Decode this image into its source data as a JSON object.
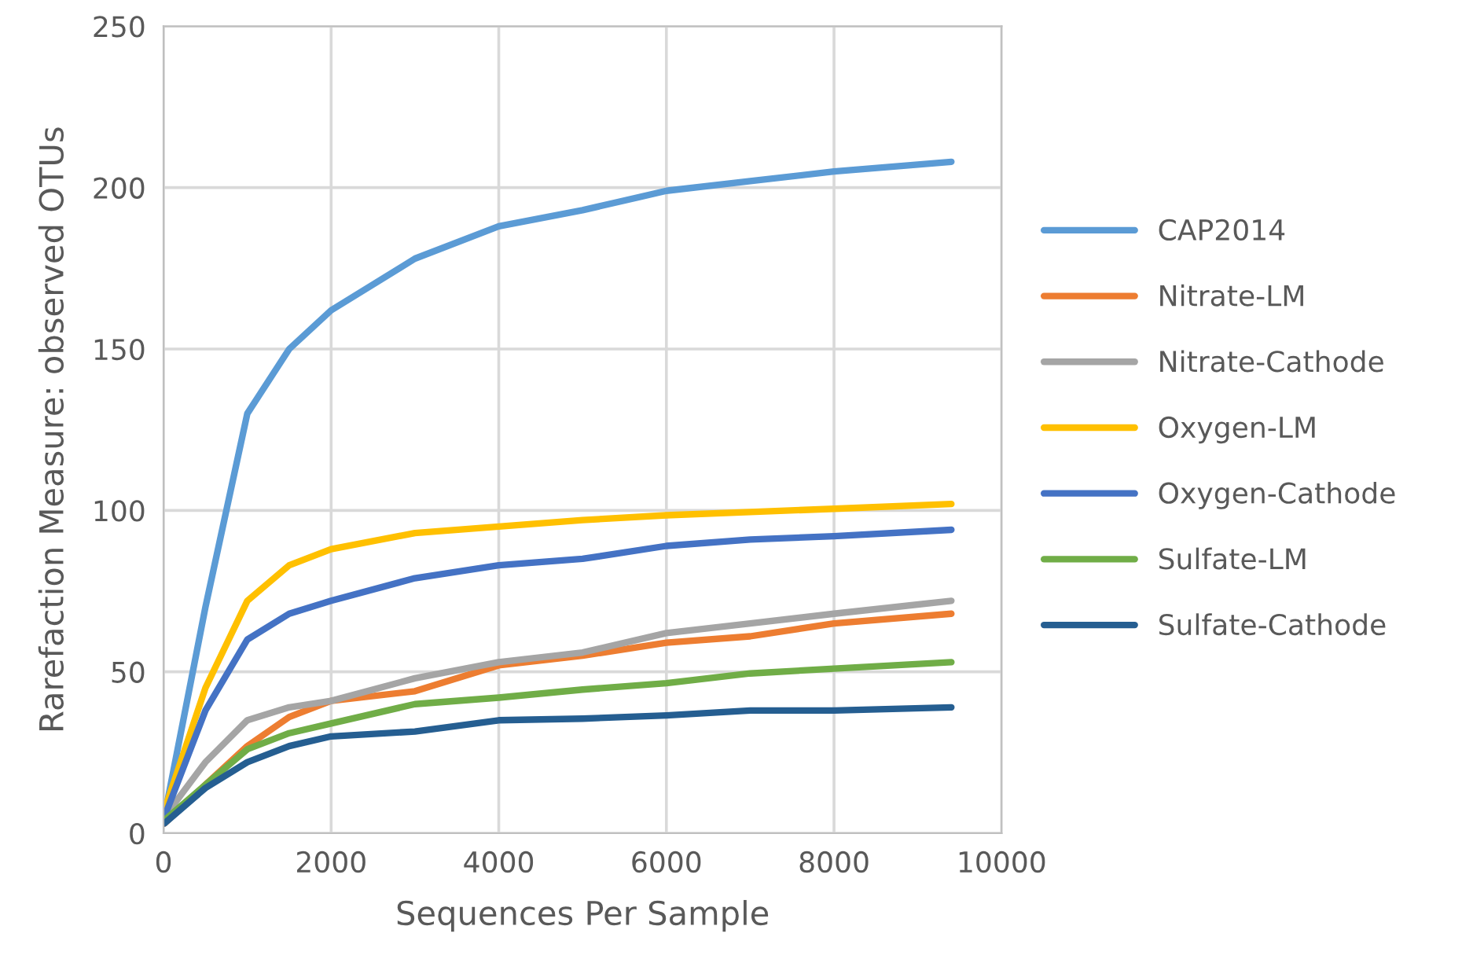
{
  "chart_data": {
    "type": "line",
    "xlabel": "Sequences Per Sample",
    "ylabel": "Rarefaction Measure: observed OTUs",
    "x": [
      10,
      500,
      1000,
      1500,
      2000,
      3000,
      4000,
      5000,
      6000,
      7000,
      8000,
      9400
    ],
    "series": [
      {
        "name": "CAP2014",
        "color": "#5b9bd5",
        "values": [
          5,
          70,
          130,
          150,
          162,
          178,
          188,
          193,
          199,
          202,
          205,
          208
        ]
      },
      {
        "name": "Nitrate-LM",
        "color": "#ed7d31",
        "values": [
          3,
          15,
          27,
          36,
          41,
          44,
          52,
          55,
          59,
          61,
          65,
          68
        ]
      },
      {
        "name": "Nitrate-Cathode",
        "color": "#a5a5a5",
        "values": [
          5,
          22,
          35,
          39,
          41,
          48,
          53,
          56,
          62,
          65,
          68,
          72
        ]
      },
      {
        "name": "Oxygen-LM",
        "color": "#ffc000",
        "values": [
          7,
          45,
          72,
          83,
          88,
          93,
          95,
          97,
          98.5,
          99.5,
          100.5,
          102
        ]
      },
      {
        "name": "Oxygen-Cathode",
        "color": "#4472c4",
        "values": [
          5,
          38,
          60,
          68,
          72,
          79,
          83,
          85,
          89,
          91,
          92,
          94
        ]
      },
      {
        "name": "Sulfate-LM",
        "color": "#70ad47",
        "values": [
          4,
          15,
          26,
          31,
          34,
          40,
          42,
          44.5,
          46.5,
          49.5,
          51,
          53
        ]
      },
      {
        "name": "Sulfate-Cathode",
        "color": "#255e91",
        "values": [
          3,
          14,
          22,
          27,
          30,
          31.5,
          35,
          35.5,
          36.5,
          38,
          38,
          39
        ]
      }
    ],
    "xlim": [
      0,
      10000
    ],
    "xticks": [
      0,
      2000,
      4000,
      6000,
      8000,
      10000
    ],
    "ylim": [
      0,
      250
    ],
    "yticks": [
      0,
      50,
      100,
      150,
      200,
      250
    ],
    "grid": true,
    "legend": "right",
    "marker": "none",
    "line_style": "solid"
  }
}
